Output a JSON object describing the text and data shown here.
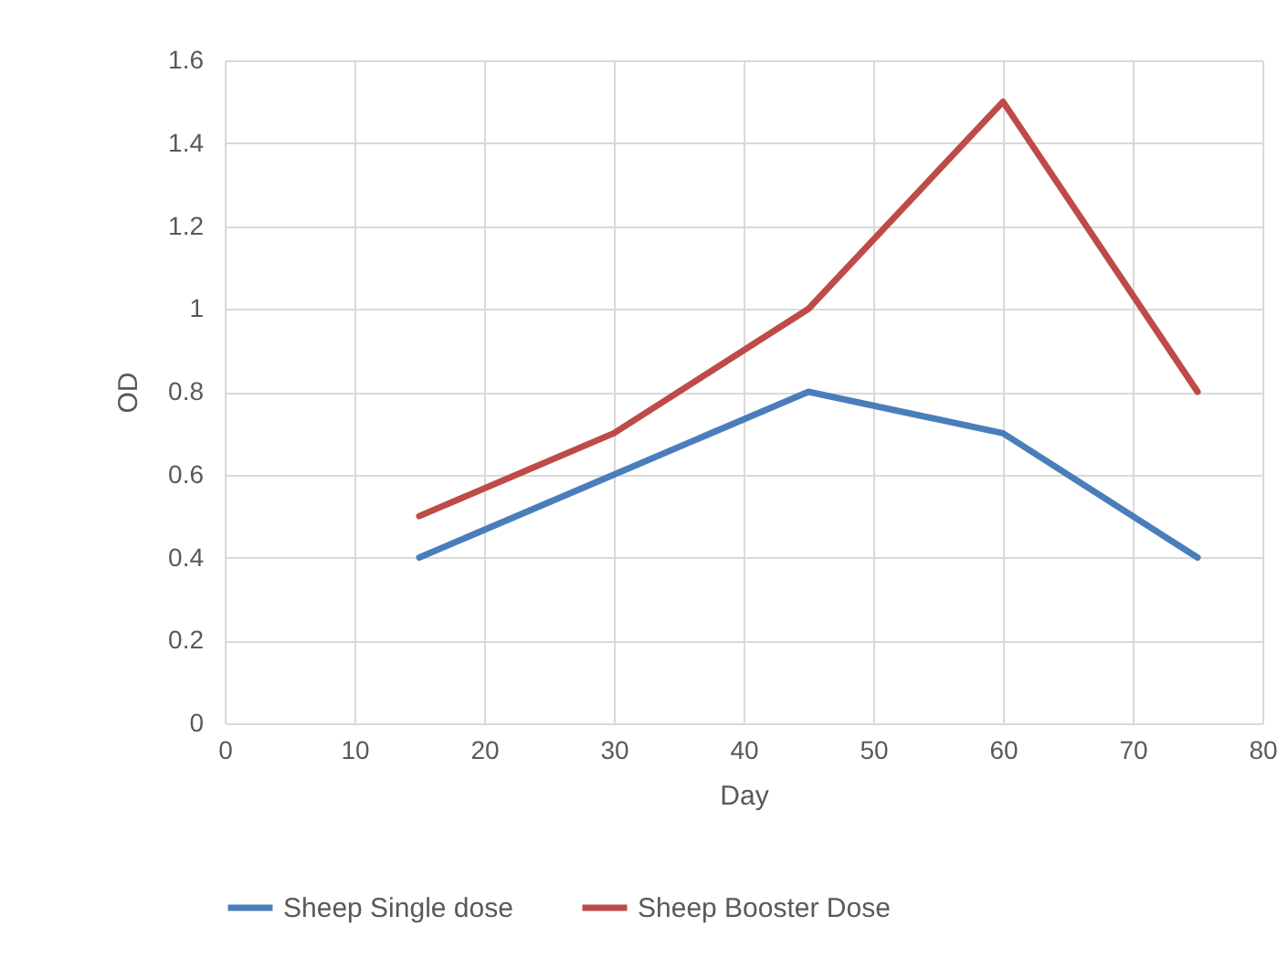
{
  "chart_data": {
    "type": "line",
    "xlabel": "Day",
    "ylabel": "OD",
    "x": [
      15,
      30,
      45,
      60,
      75
    ],
    "series": [
      {
        "name": "Sheep Single dose",
        "color": "#4a7ebb",
        "values": [
          0.4,
          0.6,
          0.8,
          0.7,
          0.4
        ]
      },
      {
        "name": "Sheep Booster Dose",
        "color": "#be4b48",
        "values": [
          0.5,
          0.7,
          1.0,
          1.5,
          0.8
        ]
      }
    ],
    "xlim": [
      0,
      80
    ],
    "xticks": [
      0,
      10,
      20,
      30,
      40,
      50,
      60,
      70,
      80
    ],
    "ylim": [
      0,
      1.6
    ],
    "yticks": [
      0,
      0.2,
      0.4,
      0.6,
      0.8,
      1,
      1.2,
      1.4,
      1.6
    ],
    "grid": true,
    "legend": "bottom",
    "marker": "none",
    "line_style": "solid"
  }
}
